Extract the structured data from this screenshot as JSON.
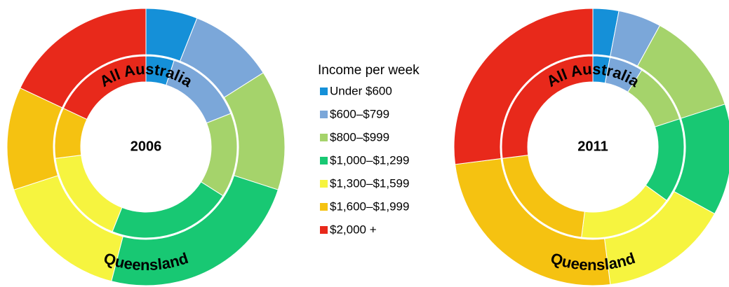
{
  "legend": {
    "title": "Income per week",
    "categories": [
      "Under $600",
      "$600–$799",
      "$800–$999",
      "$1,000–$1,299",
      "$1,300–$1,599",
      "$1,600–$1,999",
      "$2,000 +"
    ],
    "colors": [
      "#1590d8",
      "#7ba7d9",
      "#a5d36b",
      "#18c873",
      "#f6f43f",
      "#f5c211",
      "#e8291b"
    ]
  },
  "chart_data": [
    {
      "type": "pie",
      "title": "2006",
      "series": [
        {
          "name": "All Australia",
          "values": [
            5,
            14,
            15,
            22,
            17,
            9,
            18
          ]
        },
        {
          "name": "Queensland",
          "values": [
            6,
            10,
            14,
            24,
            16,
            12,
            18
          ]
        }
      ]
    },
    {
      "type": "pie",
      "title": "2011",
      "series": [
        {
          "name": "All Australia",
          "values": [
            3,
            6,
            11,
            15,
            17,
            21,
            27
          ]
        },
        {
          "name": "Queensland",
          "values": [
            3,
            5,
            12,
            13,
            15,
            25,
            27
          ]
        }
      ]
    }
  ]
}
